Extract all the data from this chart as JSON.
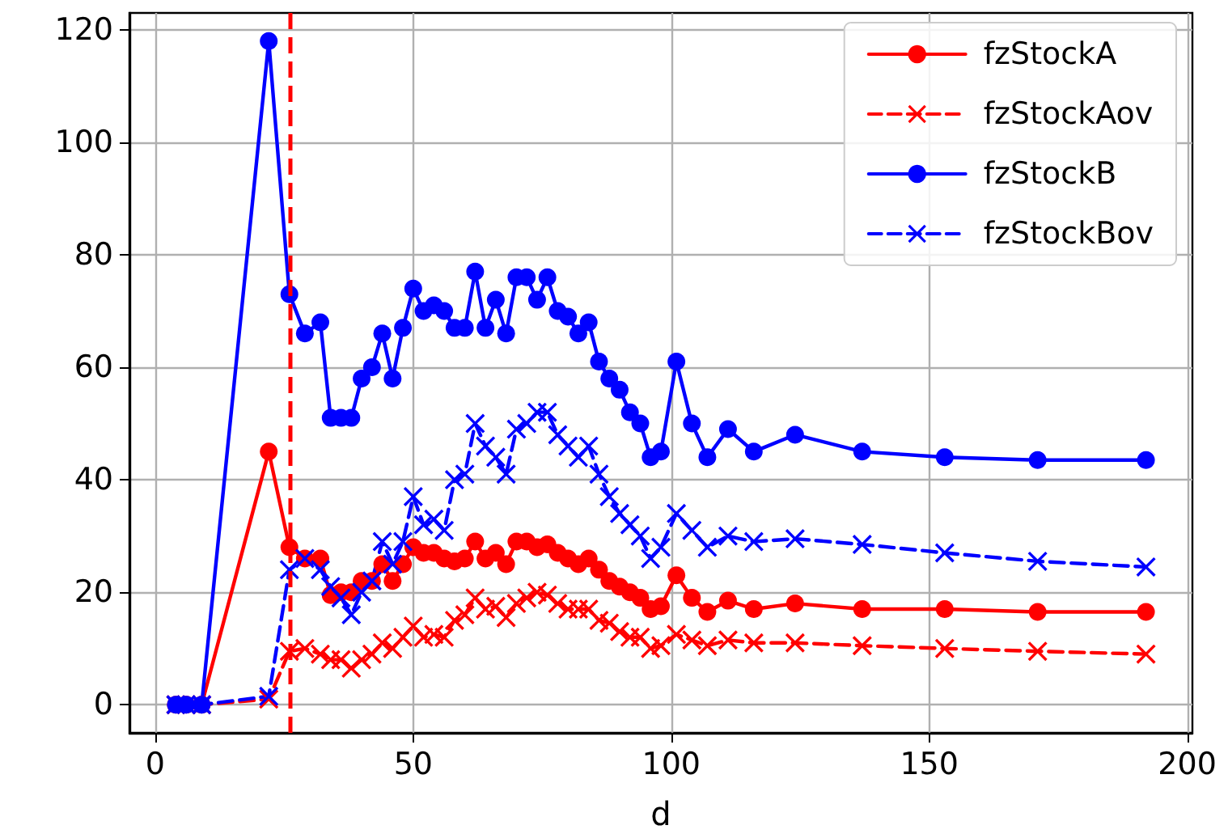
{
  "chart_data": {
    "type": "line",
    "xlabel": "d",
    "x": [
      4,
      6,
      9,
      22,
      26,
      29,
      32,
      34,
      36,
      38,
      40,
      42,
      44,
      46,
      48,
      50,
      52,
      54,
      56,
      58,
      60,
      62,
      64,
      66,
      68,
      70,
      72,
      74,
      76,
      78,
      80,
      82,
      84,
      86,
      88,
      90,
      92,
      94,
      96,
      98,
      101,
      104,
      107,
      111,
      116,
      124,
      137,
      153,
      171,
      192
    ],
    "series": [
      {
        "name": "fzStockA",
        "color": "#ff0000",
        "marker": "circle",
        "line_style": "solid",
        "values": [
          0,
          0,
          0,
          45,
          28,
          26,
          26,
          19.5,
          20,
          20,
          22,
          22,
          25,
          22,
          25,
          28,
          27,
          27,
          26,
          25.5,
          26,
          29,
          26,
          27,
          25,
          29,
          29,
          28,
          28.5,
          27,
          26,
          25,
          26,
          24,
          22,
          21,
          20,
          19,
          17,
          17.5,
          23,
          19,
          16.5,
          18.5,
          17,
          18,
          17,
          17,
          16.5,
          16.5
        ]
      },
      {
        "name": "fzStockAov",
        "color": "#ff0000",
        "marker": "cross",
        "line_style": "dashed",
        "values": [
          0,
          0,
          0,
          1,
          9.5,
          10,
          9,
          8,
          8,
          6.5,
          8,
          9,
          11,
          10,
          12,
          14,
          12,
          12.5,
          12,
          15,
          16,
          19,
          17,
          17.5,
          15.5,
          18,
          19,
          20,
          19.5,
          18,
          17,
          17,
          17,
          15,
          14.5,
          13,
          12,
          12,
          10,
          10.5,
          12.5,
          11.5,
          10.5,
          11.5,
          11,
          11,
          10.5,
          10,
          9.5,
          9
        ]
      },
      {
        "name": "fzStockB",
        "color": "#0000ff",
        "marker": "circle",
        "line_style": "solid",
        "values": [
          0,
          0,
          0,
          118,
          73,
          66,
          68,
          51,
          51,
          51,
          58,
          60,
          66,
          58,
          67,
          74,
          70,
          71,
          70,
          67,
          67,
          77,
          67,
          72,
          66,
          76,
          76,
          72,
          76,
          70,
          69,
          66,
          68,
          61,
          58,
          56,
          52,
          50,
          44,
          45,
          61,
          50,
          44,
          49,
          45,
          48,
          45,
          44,
          43.5,
          43.5
        ]
      },
      {
        "name": "fzStockBov",
        "color": "#0000ff",
        "marker": "cross",
        "line_style": "dashed",
        "values": [
          0,
          0,
          0,
          1.5,
          24,
          26,
          24,
          21,
          19,
          16,
          20,
          22,
          29,
          25,
          29,
          37,
          32,
          33,
          31,
          40,
          41,
          50,
          46,
          44,
          41,
          49,
          50,
          52,
          52,
          48,
          46,
          44,
          46,
          41,
          37,
          34,
          32,
          30,
          26,
          28,
          34,
          31,
          28,
          30,
          29,
          29.5,
          28.5,
          27,
          25.5,
          24.5
        ]
      }
    ],
    "ref_lines": [
      {
        "axis": "x",
        "value": 26,
        "color": "#ff0000",
        "line_style": "dashed"
      }
    ],
    "xlim": [
      -5,
      201
    ],
    "xticks": [
      0,
      50,
      100,
      150,
      200
    ],
    "ylim": [
      -5,
      123
    ],
    "yticks": [
      0,
      20,
      40,
      60,
      80,
      100,
      120
    ],
    "grid": true,
    "legend": "top right"
  }
}
